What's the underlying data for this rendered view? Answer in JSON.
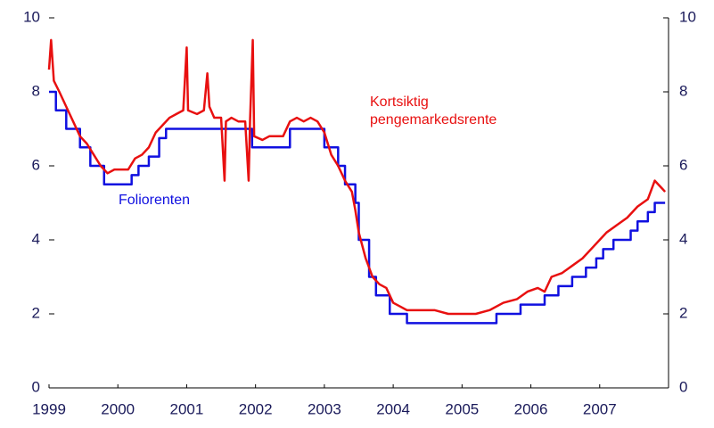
{
  "chart_data": {
    "type": "line",
    "xlim": [
      1999,
      2008
    ],
    "xticks": [
      1999,
      2000,
      2001,
      2002,
      2003,
      2004,
      2005,
      2006,
      2007
    ],
    "ylim": [
      0,
      10
    ],
    "yticks": [
      0,
      2,
      4,
      6,
      8,
      10
    ],
    "y2lim": [
      0,
      10
    ],
    "y2ticks": [
      0,
      2,
      4,
      6,
      8,
      10
    ],
    "series": [
      {
        "name": "Foliorenten",
        "color": "#1010e0",
        "step": true,
        "x": [
          1999.0,
          1999.1,
          1999.25,
          1999.45,
          1999.6,
          1999.8,
          2000.2,
          2000.3,
          2000.45,
          2000.6,
          2000.7,
          2001.95,
          2002.5,
          2003.0,
          2003.2,
          2003.3,
          2003.45,
          2003.5,
          2003.65,
          2003.75,
          2003.95,
          2004.2,
          2005.5,
          2005.85,
          2006.2,
          2006.4,
          2006.6,
          2006.8,
          2006.95,
          2007.05,
          2007.2,
          2007.45,
          2007.55,
          2007.7,
          2007.8,
          2007.95
        ],
        "values": [
          8.0,
          7.5,
          7.0,
          6.5,
          6.0,
          5.5,
          5.75,
          6.0,
          6.25,
          6.75,
          7.0,
          6.5,
          7.0,
          6.5,
          6.0,
          5.5,
          5.0,
          4.0,
          3.0,
          2.5,
          2.0,
          1.75,
          2.0,
          2.25,
          2.5,
          2.75,
          3.0,
          3.25,
          3.5,
          3.75,
          4.0,
          4.25,
          4.5,
          4.75,
          5.0,
          5.0
        ]
      },
      {
        "name": "Kortsiktig pengemarkedsrente",
        "color": "#e81010",
        "step": false,
        "x": [
          1999.0,
          1999.03,
          1999.07,
          1999.15,
          1999.25,
          1999.35,
          1999.45,
          1999.55,
          1999.65,
          1999.75,
          1999.85,
          1999.95,
          2000.05,
          2000.15,
          2000.25,
          2000.35,
          2000.45,
          2000.55,
          2000.65,
          2000.75,
          2000.85,
          2000.95,
          2001.0,
          2001.02,
          2001.15,
          2001.25,
          2001.3,
          2001.33,
          2001.4,
          2001.5,
          2001.55,
          2001.57,
          2001.65,
          2001.75,
          2001.85,
          2001.9,
          2001.92,
          2001.96,
          2001.98,
          2002.1,
          2002.2,
          2002.3,
          2002.4,
          2002.5,
          2002.6,
          2002.7,
          2002.8,
          2002.9,
          2003.0,
          2003.1,
          2003.2,
          2003.3,
          2003.4,
          2003.45,
          2003.5,
          2003.6,
          2003.7,
          2003.8,
          2003.9,
          2004.0,
          2004.1,
          2004.2,
          2004.4,
          2004.6,
          2004.8,
          2005.0,
          2005.2,
          2005.4,
          2005.6,
          2005.8,
          2005.95,
          2006.1,
          2006.2,
          2006.3,
          2006.45,
          2006.6,
          2006.75,
          2006.9,
          2007.0,
          2007.1,
          2007.25,
          2007.4,
          2007.55,
          2007.7,
          2007.8,
          2007.9,
          2007.95
        ],
        "values": [
          8.6,
          9.4,
          8.3,
          8.0,
          7.6,
          7.2,
          6.8,
          6.6,
          6.3,
          6.0,
          5.8,
          5.9,
          5.9,
          5.9,
          6.2,
          6.3,
          6.5,
          6.9,
          7.1,
          7.3,
          7.4,
          7.5,
          9.2,
          7.5,
          7.4,
          7.5,
          8.5,
          7.6,
          7.3,
          7.3,
          5.6,
          7.2,
          7.3,
          7.2,
          7.2,
          5.6,
          7.2,
          9.4,
          6.8,
          6.7,
          6.8,
          6.8,
          6.8,
          7.2,
          7.3,
          7.2,
          7.3,
          7.2,
          6.9,
          6.3,
          6.0,
          5.6,
          5.3,
          4.8,
          4.2,
          3.5,
          3.0,
          2.8,
          2.7,
          2.3,
          2.2,
          2.1,
          2.1,
          2.1,
          2.0,
          2.0,
          2.0,
          2.1,
          2.3,
          2.4,
          2.6,
          2.7,
          2.6,
          3.0,
          3.1,
          3.3,
          3.5,
          3.8,
          4.0,
          4.2,
          4.4,
          4.6,
          4.9,
          5.1,
          5.6,
          5.4,
          5.3
        ]
      }
    ]
  }
}
